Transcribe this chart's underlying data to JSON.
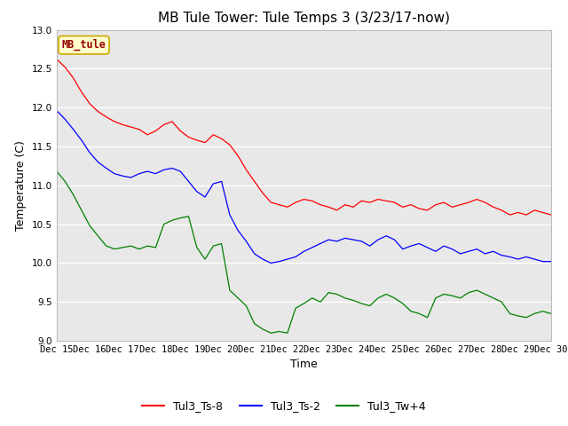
{
  "title": "MB Tule Tower: Tule Temps 3 (3/23/17-now)",
  "xlabel": "Time",
  "ylabel": "Temperature (C)",
  "ylim": [
    9.0,
    13.0
  ],
  "xlim": [
    0,
    15
  ],
  "yticks": [
    9.0,
    9.5,
    10.0,
    10.5,
    11.0,
    11.5,
    12.0,
    12.5,
    13.0
  ],
  "xtick_labels": [
    "Dec 15",
    "Dec 16",
    "Dec 17",
    "Dec 18",
    "Dec 19",
    "Dec 20",
    "Dec 21",
    "Dec 22",
    "Dec 23",
    "Dec 24",
    "Dec 25",
    "Dec 26",
    "Dec 27",
    "Dec 28",
    "Dec 29",
    "Dec 30"
  ],
  "xtick_positions": [
    0,
    1,
    2,
    3,
    4,
    5,
    6,
    7,
    8,
    9,
    10,
    11,
    12,
    13,
    14,
    15
  ],
  "label_box_text": "MB_tule",
  "line_colors": [
    "red",
    "blue",
    "green"
  ],
  "line_labels": [
    "Tul3_Ts-8",
    "Tul3_Ts-2",
    "Tul3_Tw+4"
  ],
  "background_color": "#e8e8e8",
  "title_fontsize": 11,
  "axis_label_fontsize": 9,
  "tick_fontsize": 7.5,
  "legend_fontsize": 9,
  "red_series": [
    12.62,
    12.52,
    12.38,
    12.2,
    12.05,
    11.95,
    11.88,
    11.82,
    11.78,
    11.75,
    11.72,
    11.65,
    11.7,
    11.78,
    11.82,
    11.7,
    11.62,
    11.58,
    11.55,
    11.65,
    11.6,
    11.52,
    11.38,
    11.2,
    11.05,
    10.9,
    10.78,
    10.75,
    10.72,
    10.78,
    10.82,
    10.8,
    10.75,
    10.72,
    10.68,
    10.75,
    10.72,
    10.8,
    10.78,
    10.82,
    10.8,
    10.78,
    10.72,
    10.75,
    10.7,
    10.68,
    10.75,
    10.78,
    10.72,
    10.75,
    10.78,
    10.82,
    10.78,
    10.72,
    10.68,
    10.62,
    10.65,
    10.62,
    10.68,
    10.65,
    10.62
  ],
  "blue_series": [
    11.96,
    11.85,
    11.72,
    11.58,
    11.42,
    11.3,
    11.22,
    11.15,
    11.12,
    11.1,
    11.15,
    11.18,
    11.15,
    11.2,
    11.22,
    11.18,
    11.05,
    10.92,
    10.85,
    11.02,
    11.05,
    10.62,
    10.42,
    10.28,
    10.12,
    10.05,
    10.0,
    10.02,
    10.05,
    10.08,
    10.15,
    10.2,
    10.25,
    10.3,
    10.28,
    10.32,
    10.3,
    10.28,
    10.22,
    10.3,
    10.35,
    10.3,
    10.18,
    10.22,
    10.25,
    10.2,
    10.15,
    10.22,
    10.18,
    10.12,
    10.15,
    10.18,
    10.12,
    10.15,
    10.1,
    10.08,
    10.05,
    10.08,
    10.05,
    10.02,
    10.02
  ],
  "green_series": [
    11.18,
    11.05,
    10.88,
    10.68,
    10.48,
    10.35,
    10.22,
    10.18,
    10.2,
    10.22,
    10.18,
    10.22,
    10.2,
    10.5,
    10.55,
    10.58,
    10.6,
    10.2,
    10.05,
    10.22,
    10.25,
    9.65,
    9.55,
    9.45,
    9.22,
    9.15,
    9.1,
    9.12,
    9.1,
    9.42,
    9.48,
    9.55,
    9.5,
    9.62,
    9.6,
    9.55,
    9.52,
    9.48,
    9.45,
    9.55,
    9.6,
    9.55,
    9.48,
    9.38,
    9.35,
    9.3,
    9.55,
    9.6,
    9.58,
    9.55,
    9.62,
    9.65,
    9.6,
    9.55,
    9.5,
    9.35,
    9.32,
    9.3,
    9.35,
    9.38,
    9.35
  ]
}
